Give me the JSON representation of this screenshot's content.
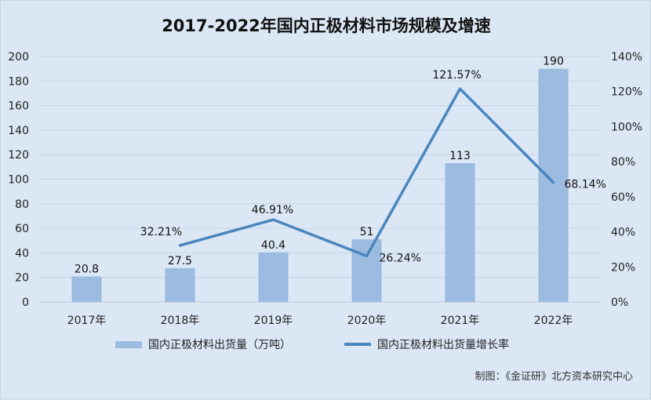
{
  "chart_data": {
    "type": "bar",
    "title": "2017-2022年国内正极材料市场规模及增速",
    "categories": [
      "2017年",
      "2018年",
      "2019年",
      "2020年",
      "2021年",
      "2022年"
    ],
    "series": [
      {
        "name": "国内正极材料出货量（万吨）",
        "type": "bar",
        "axis": "left",
        "values": [
          20.8,
          27.5,
          40.4,
          51,
          113,
          190
        ],
        "labels": [
          "20.8",
          "27.5",
          "40.4",
          "51",
          "113",
          "190"
        ]
      },
      {
        "name": "国内正极材料出货量增长率",
        "type": "line",
        "axis": "right",
        "values": [
          null,
          32.21,
          46.91,
          26.24,
          121.57,
          68.14
        ],
        "labels": [
          "",
          "32.21%",
          "46.91%",
          "26.24%",
          "121.57%",
          "68.14%"
        ]
      }
    ],
    "y_left": {
      "range": [
        0,
        200
      ],
      "ticks": [
        "0",
        "20",
        "40",
        "60",
        "80",
        "100",
        "120",
        "140",
        "160",
        "180",
        "200"
      ]
    },
    "y_right": {
      "range": [
        0,
        140
      ],
      "ticks": [
        "0%",
        "20%",
        "40%",
        "60%",
        "80%",
        "100%",
        "120%",
        "140%"
      ]
    },
    "grid": true,
    "legend_position": "bottom",
    "colors": {
      "bar": "#9cbbe0",
      "line": "#4a86bd",
      "grid": "#c5d3e4",
      "background": "#dbe7f4"
    }
  },
  "source_note": "制图：《金证研》北方资本研究中心"
}
